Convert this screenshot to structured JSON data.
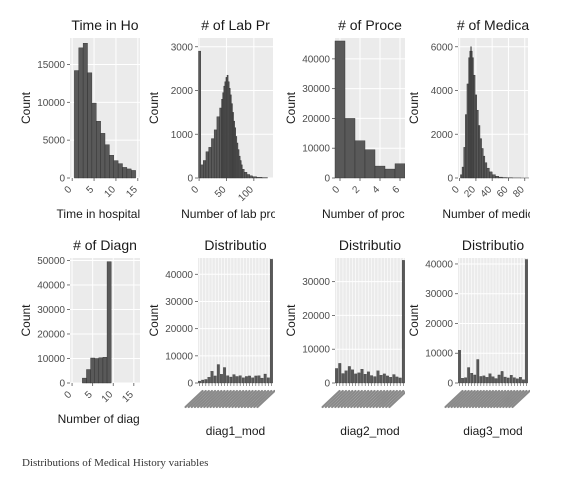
{
  "caption": "Distributions of Medical History variables",
  "colors": {
    "bar_fill": "#595959",
    "bar_stroke": "#2b2b2b",
    "panel_bg": "#ebebeb",
    "grid": "#ffffff",
    "text": "#1a1a1a"
  },
  "chart_data": [
    {
      "type": "bar",
      "title": "Time in Ho",
      "xlabel": "Time in hospital (c",
      "ylabel": "Count",
      "xlim": [
        -0.5,
        15.5
      ],
      "ylim": [
        0,
        18500
      ],
      "xticks": [
        "0",
        "5",
        "10",
        "15"
      ],
      "yticks": [
        "0",
        "5000",
        "10000",
        "15000"
      ],
      "x": [
        1,
        2,
        3,
        4,
        5,
        6,
        7,
        8,
        9,
        10,
        11,
        12,
        13,
        14
      ],
      "values": [
        14200,
        17200,
        17800,
        13900,
        9900,
        7500,
        5900,
        4400,
        3000,
        2300,
        1900,
        1400,
        1200,
        1000
      ]
    },
    {
      "type": "bar",
      "title": "# of Lab Pr",
      "xlabel": "Number of lab proce",
      "ylabel": "Count",
      "xlim": [
        -2,
        135
      ],
      "ylim": [
        0,
        3200
      ],
      "xticks": [
        "0",
        "50",
        "100"
      ],
      "yticks": [
        "0",
        "1000",
        "2000",
        "3000"
      ],
      "x": [
        1,
        5,
        10,
        15,
        20,
        25,
        30,
        35,
        40,
        42,
        44,
        46,
        48,
        50,
        52,
        54,
        56,
        58,
        60,
        62,
        64,
        66,
        68,
        70,
        72,
        74,
        76,
        78,
        80,
        85,
        90,
        95,
        100,
        110,
        120
      ],
      "values": [
        2900,
        300,
        400,
        600,
        700,
        900,
        1100,
        1400,
        1600,
        1800,
        1950,
        2100,
        2200,
        2300,
        2350,
        2200,
        2050,
        1900,
        1700,
        1500,
        1300,
        1150,
        950,
        800,
        650,
        500,
        400,
        300,
        200,
        130,
        80,
        50,
        30,
        15,
        8
      ]
    },
    {
      "type": "bar",
      "title": "# of Proce",
      "xlabel": "Number of proced",
      "ylabel": "Count",
      "xlim": [
        -0.5,
        6.5
      ],
      "ylim": [
        0,
        47000
      ],
      "xticks": [
        "0",
        "2",
        "4",
        "6"
      ],
      "yticks": [
        "0",
        "10000",
        "20000",
        "30000",
        "40000"
      ],
      "x": [
        0,
        1,
        2,
        3,
        4,
        5,
        6
      ],
      "values": [
        46000,
        20000,
        12500,
        9500,
        4000,
        3000,
        4800
      ]
    },
    {
      "type": "bar",
      "title": "# of Medica",
      "xlabel": "Number of medicat",
      "ylabel": "Count",
      "xlim": [
        -2,
        84
      ],
      "ylim": [
        0,
        6400
      ],
      "xticks": [
        "0",
        "20",
        "40",
        "60",
        "80"
      ],
      "yticks": [
        "0",
        "2000",
        "4000",
        "6000"
      ],
      "x": [
        2,
        4,
        6,
        8,
        10,
        12,
        13,
        14,
        15,
        16,
        18,
        20,
        22,
        24,
        26,
        28,
        30,
        32,
        35,
        38,
        42,
        46,
        50,
        55,
        60,
        70,
        80
      ],
      "values": [
        150,
        500,
        1400,
        2900,
        4300,
        5500,
        5800,
        6000,
        5800,
        5500,
        4700,
        3800,
        3100,
        2400,
        1800,
        1350,
        1000,
        700,
        450,
        280,
        150,
        80,
        40,
        20,
        10,
        5,
        2
      ]
    },
    {
      "type": "bar",
      "title": "# of Diagn",
      "xlabel": "Number of diagnc",
      "ylabel": "Count",
      "xlim": [
        -0.5,
        16.5
      ],
      "ylim": [
        0,
        51000
      ],
      "xticks": [
        "0",
        "5",
        "10",
        "15"
      ],
      "yticks": [
        "0",
        "10000",
        "20000",
        "30000",
        "40000",
        "50000"
      ],
      "x": [
        3,
        4,
        5,
        6,
        7,
        8,
        9
      ],
      "values": [
        2000,
        5500,
        10200,
        10000,
        10300,
        10500,
        49500
      ]
    },
    {
      "type": "bar",
      "title": "Distributio",
      "xlabel": "diag1_mod",
      "ylabel": "Count",
      "ylim": [
        0,
        46000
      ],
      "yticks": [
        "0",
        "10000",
        "20000",
        "30000",
        "40000"
      ],
      "tick_note": "category labels overlap and are unreadable",
      "values": [
        700,
        1100,
        1300,
        2100,
        4300,
        2600,
        6800,
        3200,
        5700,
        2700,
        2200,
        3100,
        2400,
        2700,
        1900,
        2400,
        2600,
        1900,
        2600,
        2700,
        1800,
        3300,
        1900,
        45500
      ]
    },
    {
      "type": "bar",
      "title": "Distributio",
      "xlabel": "diag2_mod",
      "ylabel": "Count",
      "ylim": [
        0,
        37000
      ],
      "yticks": [
        "0",
        "10000",
        "20000",
        "30000"
      ],
      "tick_note": "category labels overlap and are unreadable",
      "values": [
        4300,
        5800,
        2800,
        3600,
        4900,
        3900,
        2700,
        3000,
        4100,
        2600,
        3300,
        2200,
        1900,
        3600,
        2300,
        2700,
        2100,
        1700,
        2500,
        1800,
        1500,
        36300
      ]
    },
    {
      "type": "bar",
      "title": "Distributio",
      "xlabel": "diag3_mod",
      "ylabel": "Count",
      "ylim": [
        0,
        42000
      ],
      "yticks": [
        "0",
        "10000",
        "20000",
        "30000",
        "40000"
      ],
      "tick_note": "category labels overlap and are unreadable",
      "values": [
        11000,
        1600,
        1800,
        5200,
        3300,
        2700,
        7900,
        2200,
        2400,
        1900,
        3100,
        2100,
        1500,
        2700,
        3900,
        2000,
        1700,
        2600,
        1800,
        1400,
        1900,
        1100,
        41500
      ]
    }
  ]
}
